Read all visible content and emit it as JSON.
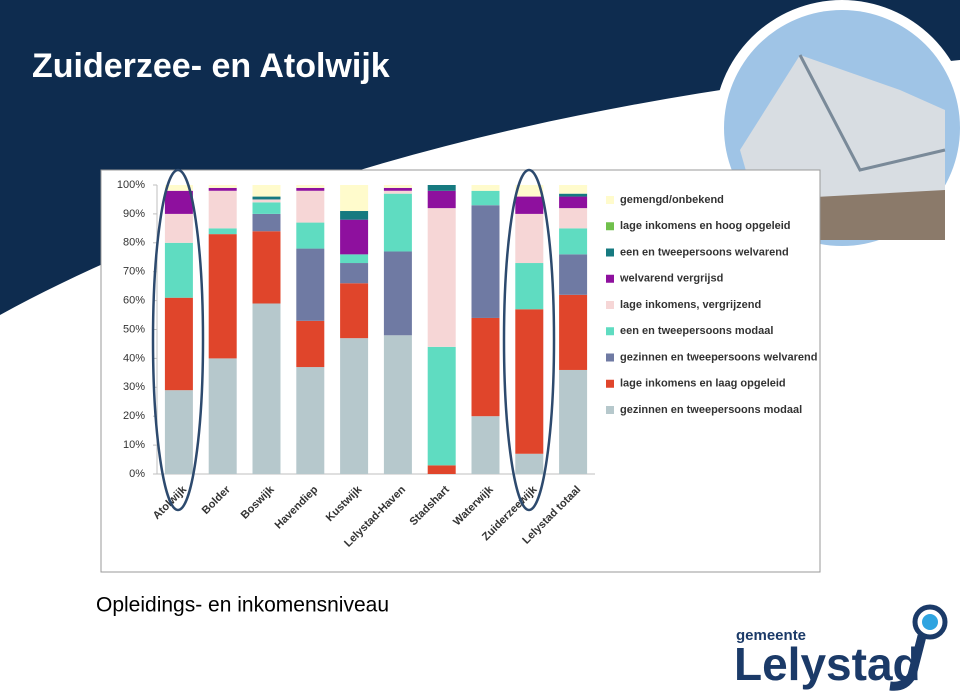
{
  "chart_data": {
    "type": "stacked_bar",
    "title": "Zuiderzee- en Atolwijk",
    "subtitle": "Opleidings- en inkomensniveau",
    "categories": [
      "Atolwijk",
      "Bolder",
      "Boswijk",
      "Havendiep",
      "Kustwijk",
      "Lelystad-Haven",
      "Stadshart",
      "Waterwijk",
      "Zuiderzeewijk",
      "Lelystad totaal"
    ],
    "series": [
      {
        "name": "gezinnen en tweepersoons modaal",
        "color": "#b6c8cc",
        "values": [
          29,
          40,
          59,
          37,
          47,
          48,
          0,
          20,
          7,
          36
        ]
      },
      {
        "name": "lage inkomens en laag opgeleid",
        "color": "#e0452b",
        "values": [
          32,
          43,
          25,
          16,
          19,
          0,
          3,
          34,
          50,
          26
        ]
      },
      {
        "name": "gezinnen en tweepersoons welvarend",
        "color": "#6f7aa3",
        "values": [
          0,
          0,
          6,
          25,
          7,
          29,
          0,
          39,
          0,
          14
        ]
      },
      {
        "name": "een en tweepersoons modaal",
        "color": "#5fdcc1",
        "values": [
          19,
          2,
          4,
          9,
          3,
          20,
          41,
          5,
          16,
          9
        ]
      },
      {
        "name": "lage inkomens, vergrijzend",
        "color": "#f6d6d6",
        "values": [
          10,
          13,
          1,
          11,
          0,
          1,
          48,
          0,
          17,
          7
        ]
      },
      {
        "name": "welvarend vergrijsd",
        "color": "#8e109e",
        "values": [
          8,
          1,
          0,
          1,
          12,
          1,
          6,
          0,
          6,
          4
        ]
      },
      {
        "name": "een en tweepersoons welvarend",
        "color": "#167a80",
        "values": [
          0,
          0,
          1,
          0,
          3,
          0,
          2,
          0,
          0,
          1
        ]
      },
      {
        "name": "lage inkomens en hoog opgeleid",
        "color": "#70c04c",
        "values": [
          0,
          0,
          0,
          0,
          0,
          0,
          0,
          0,
          0,
          0
        ]
      },
      {
        "name": "gemengd/onbekend",
        "color": "#fffbcc",
        "values": [
          2,
          1,
          4,
          1,
          9,
          1,
          0,
          2,
          4,
          3
        ]
      }
    ],
    "ylim": [
      0,
      100
    ],
    "yticks": [
      {
        "value": 0,
        "label": "0%"
      },
      {
        "value": 10,
        "label": "10%"
      },
      {
        "value": 20,
        "label": "20%"
      },
      {
        "value": 30,
        "label": "30%"
      },
      {
        "value": 40,
        "label": "40%"
      },
      {
        "value": 50,
        "label": "50%"
      },
      {
        "value": 60,
        "label": "60%"
      },
      {
        "value": 70,
        "label": "70%"
      },
      {
        "value": 80,
        "label": "80%"
      },
      {
        "value": 90,
        "label": "90%"
      },
      {
        "value": 100,
        "label": "100%"
      }
    ]
  },
  "logo": {
    "small": "gemeente",
    "name": "Lelystad"
  }
}
